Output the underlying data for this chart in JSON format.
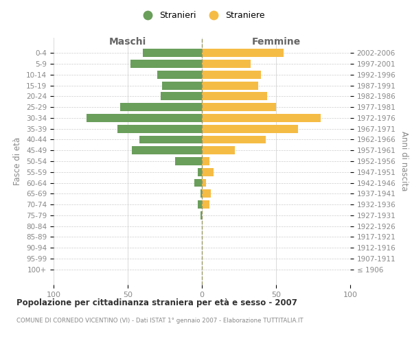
{
  "age_groups": [
    "100+",
    "95-99",
    "90-94",
    "85-89",
    "80-84",
    "75-79",
    "70-74",
    "65-69",
    "60-64",
    "55-59",
    "50-54",
    "45-49",
    "40-44",
    "35-39",
    "30-34",
    "25-29",
    "20-24",
    "15-19",
    "10-14",
    "5-9",
    "0-4"
  ],
  "birth_years": [
    "≤ 1906",
    "1907-1911",
    "1912-1916",
    "1917-1921",
    "1922-1926",
    "1927-1931",
    "1932-1936",
    "1937-1941",
    "1942-1946",
    "1947-1951",
    "1952-1956",
    "1957-1961",
    "1962-1966",
    "1967-1971",
    "1972-1976",
    "1977-1981",
    "1982-1986",
    "1987-1991",
    "1992-1996",
    "1997-2001",
    "2002-2006"
  ],
  "maschi": [
    0,
    0,
    0,
    0,
    0,
    1,
    3,
    1,
    5,
    3,
    18,
    47,
    42,
    57,
    78,
    55,
    28,
    27,
    30,
    48,
    40
  ],
  "femmine": [
    0,
    0,
    0,
    0,
    0,
    0,
    5,
    6,
    3,
    8,
    5,
    22,
    43,
    65,
    80,
    50,
    44,
    38,
    40,
    33,
    55
  ],
  "color_maschi": "#6a9e5b",
  "color_femmine": "#f5bc45",
  "title_main": "Popolazione per cittadinanza straniera per età e sesso - 2007",
  "title_sub": "COMUNE DI CORNEDO VICENTINO (VI) - Dati ISTAT 1° gennaio 2007 - Elaborazione TUTTITALIA.IT",
  "legend_maschi": "Stranieri",
  "legend_femmine": "Straniere",
  "xlabel_left": "Maschi",
  "xlabel_right": "Femmine",
  "ylabel_left": "Fasce di età",
  "ylabel_right": "Anni di nascita",
  "xlim": 100,
  "bg_color": "#ffffff",
  "grid_color": "#cccccc"
}
